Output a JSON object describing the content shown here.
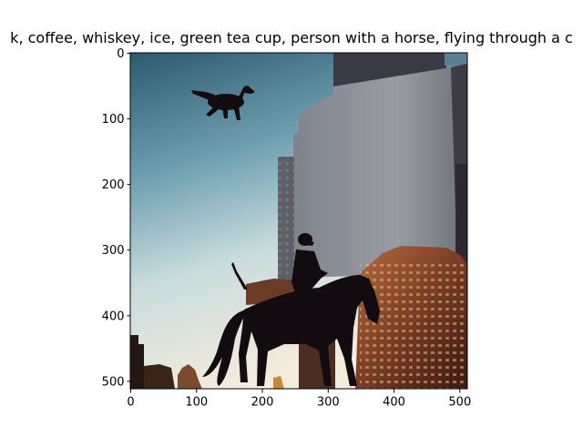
{
  "figure": {
    "title": "k,  coffee, whiskey, ice, green tea cup, person with a horse, flying through a c"
  },
  "axes": {
    "x_ticks": [
      "0",
      "100",
      "200",
      "300",
      "400",
      "500"
    ],
    "y_ticks": [
      "0",
      "100",
      "200",
      "300",
      "400",
      "500"
    ],
    "x_range": [
      0,
      512
    ],
    "y_range": [
      0,
      512
    ],
    "y_inverted": true
  },
  "image": {
    "content": "photo",
    "colors": {
      "sky_top": "#2f5c73",
      "sky_mid": "#9fc3cf",
      "sky_bottom": "#f3ecdc",
      "building_gray": "#8d8f96",
      "building_dark": "#2b2a33",
      "building_warm": "#8a4a2c",
      "silhouette": "#120c10"
    }
  }
}
